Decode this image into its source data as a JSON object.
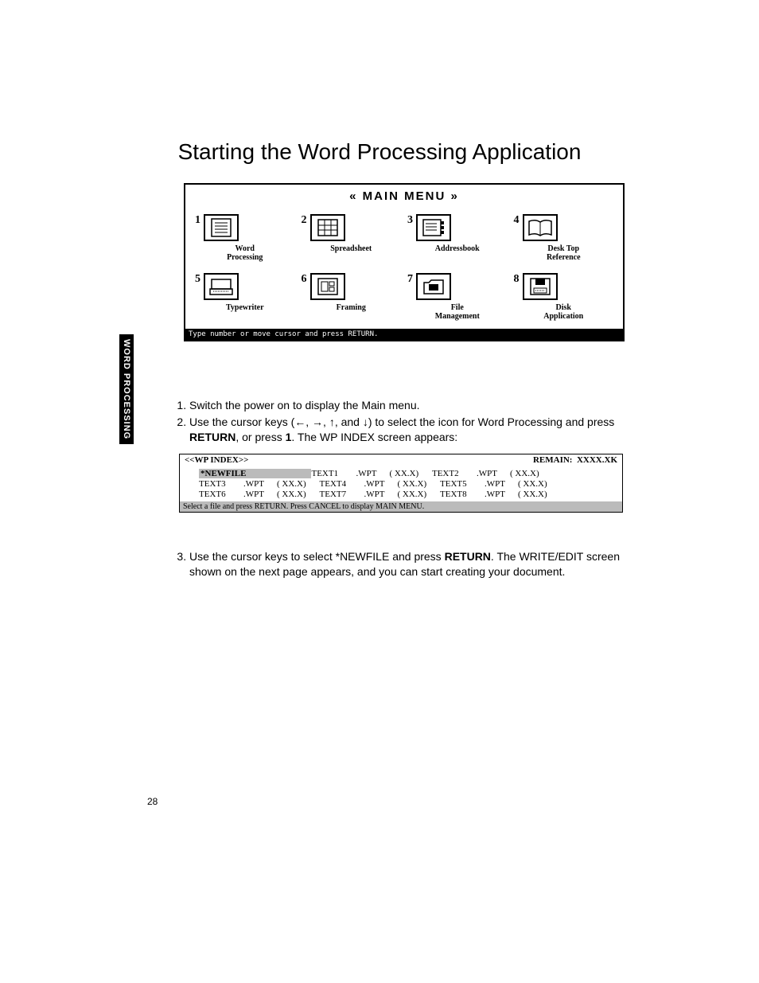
{
  "title": "Starting the Word Processing Application",
  "side_tab": "WORD PROCESSING",
  "page_number": "28",
  "menu": {
    "header": "« MAIN MENU »",
    "hint": "Type number or move cursor and press RETURN.",
    "items": [
      {
        "num": "1",
        "label": "Word\nProcessing"
      },
      {
        "num": "2",
        "label": "Spreadsheet"
      },
      {
        "num": "3",
        "label": "Addressbook"
      },
      {
        "num": "4",
        "label": "Desk Top\nReference"
      },
      {
        "num": "5",
        "label": "Typewriter"
      },
      {
        "num": "6",
        "label": "Framing"
      },
      {
        "num": "7",
        "label": "File\nManagement"
      },
      {
        "num": "8",
        "label": "Disk\nApplication"
      }
    ]
  },
  "instructions_1": [
    "Switch the power on to display the Main menu.",
    "Use the cursor keys (←, →, ↑, and ↓) to select the icon for Word Processing and press <b>RETURN</b>, or press <b>1</b>. The WP INDEX screen appears:"
  ],
  "instructions_2": "Use the cursor keys to select *NEWFILE and press <b>RETURN</b>. The WRITE/EDIT screen shown on the next page appears, and you can start creating your document.",
  "wp": {
    "title": "<<WP INDEX>>",
    "remain_label": "REMAIN:",
    "remain_value": "XXXX.XK",
    "newfile": "*NEWFILE",
    "footer": "Select a file and press RETURN.  Press CANCEL to display MAIN MENU.",
    "rows": [
      [
        {
          "n": "",
          "e": "",
          "s": "",
          "newfile": true
        },
        {
          "n": "TEXT1",
          "e": ".WPT",
          "s": "( XX.X)"
        },
        {
          "n": "TEXT2",
          "e": ".WPT",
          "s": "( XX.X)"
        }
      ],
      [
        {
          "n": "TEXT3",
          "e": ".WPT",
          "s": "( XX.X)"
        },
        {
          "n": "TEXT4",
          "e": ".WPT",
          "s": "( XX.X)"
        },
        {
          "n": "TEXT5",
          "e": ".WPT",
          "s": "( XX.X)"
        }
      ],
      [
        {
          "n": "TEXT6",
          "e": ".WPT",
          "s": "( XX.X)"
        },
        {
          "n": "TEXT7",
          "e": ".WPT",
          "s": "( XX.X)"
        },
        {
          "n": "TEXT8",
          "e": ".WPT",
          "s": "( XX.X)"
        }
      ]
    ]
  },
  "icons": {
    "word": "<svg viewBox='0 0 40 30'><rect x='8' y='4' width='24' height='22' fill='none' stroke='#000' stroke-width='1.5'/><line x1='12' y1='9' x2='28' y2='9' stroke='#000'/><line x1='12' y1='13' x2='28' y2='13' stroke='#000'/><line x1='12' y1='17' x2='28' y2='17' stroke='#000'/><line x1='12' y1='21' x2='28' y2='21' stroke='#000'/></svg>",
    "spread": "<svg viewBox='0 0 40 30'><rect x='8' y='5' width='24' height='20' fill='none' stroke='#000' stroke-width='1.5'/><line x1='16' y1='5' x2='16' y2='25' stroke='#000'/><line x1='24' y1='5' x2='24' y2='25' stroke='#000'/><line x1='8' y1='12' x2='32' y2='12' stroke='#000'/><line x1='8' y1='18' x2='32' y2='18' stroke='#000'/></svg>",
    "addr": "<svg viewBox='0 0 40 30'><rect x='7' y='5' width='22' height='20' fill='none' stroke='#000' stroke-width='1.5'/><rect x='29' y='7' width='4' height='4' fill='#000'/><rect x='29' y='13' width='4' height='4' fill='#000'/><rect x='29' y='19' width='4' height='4' fill='#000'/><line x1='10' y1='10' x2='24' y2='10' stroke='#000'/><line x1='10' y1='14' x2='24' y2='14' stroke='#000'/><line x1='10' y1='18' x2='24' y2='18' stroke='#000'/></svg>",
    "book": "<svg viewBox='0 0 40 30'><path d='M6 7 Q14 4 20 8 Q26 4 34 7 L34 24 Q26 21 20 25 Q14 21 6 24 Z' fill='none' stroke='#000' stroke-width='1.5'/><line x1='20' y1='8' x2='20' y2='25' stroke='#000'/></svg>",
    "type": "<svg viewBox='0 0 40 30'><rect x='8' y='6' width='24' height='12' fill='none' stroke='#000' stroke-width='1.5'/><rect x='6' y='18' width='28' height='7' fill='none' stroke='#000' stroke-width='1.5'/><line x1='10' y1='21' x2='30' y2='21' stroke='#000' stroke-dasharray='1 1'/></svg>",
    "frame": "<svg viewBox='0 0 40 30'><rect x='8' y='5' width='24' height='20' fill='none' stroke='#000' stroke-width='1.5'/><rect x='12' y='9' width='8' height='12' fill='none' stroke='#000'/><rect x='22' y='9' width='6' height='5' fill='none' stroke='#000'/><rect x='22' y='16' width='6' height='5' fill='none' stroke='#000'/></svg>",
    "file": "<svg viewBox='0 0 40 30'><path d='M8 10 L14 10 L17 7 L32 7 L32 24 L8 24 Z' fill='none' stroke='#000' stroke-width='1.5'/><rect x='14' y='12' width='12' height='8' fill='#000'/></svg>",
    "disk": "<svg viewBox='0 0 40 30'><rect x='8' y='5' width='24' height='20' fill='none' stroke='#000' stroke-width='1.5'/><rect x='14' y='5' width='12' height='8' fill='#000'/><rect x='12' y='17' width='16' height='6' fill='none' stroke='#000'/><line x1='14' y1='20' x2='26' y2='20' stroke='#000' stroke-dasharray='1 1'/></svg>"
  },
  "icon_map": [
    "word",
    "spread",
    "addr",
    "book",
    "type",
    "frame",
    "file",
    "disk"
  ]
}
